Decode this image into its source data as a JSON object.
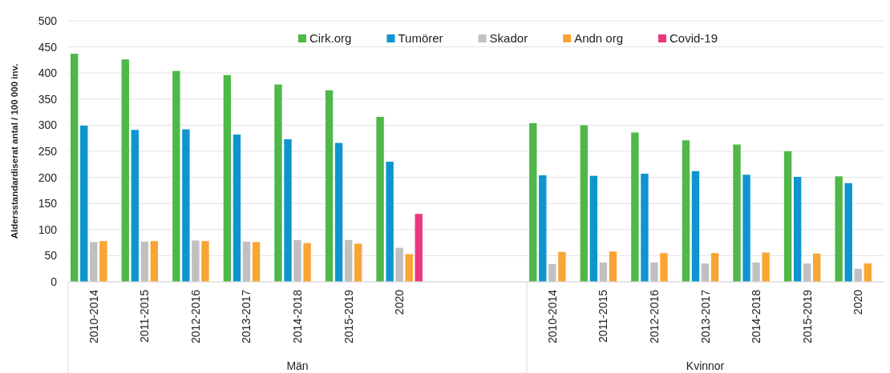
{
  "chart_data": {
    "type": "bar",
    "ylabel": "Aldersstandardiserat antal / 100 000 inv.",
    "categories": [
      "2010-2014",
      "2011-2015",
      "2012-2016",
      "2013-2017",
      "2014-2018",
      "2015-2019",
      "2020",
      null,
      null,
      "2010-2014",
      "2011-2015",
      "2012-2016",
      "2013-2017",
      "2014-2018",
      "2015-2019",
      "2020"
    ],
    "series": [
      {
        "name": "Cirk.org",
        "color": "#4fb848",
        "values": [
          437,
          426,
          404,
          396,
          378,
          367,
          316,
          null,
          null,
          304,
          300,
          286,
          271,
          263,
          250,
          202
        ]
      },
      {
        "name": "Tumörer",
        "color": "#0e95d0",
        "values": [
          299,
          291,
          292,
          282,
          273,
          266,
          230,
          null,
          null,
          204,
          203,
          207,
          212,
          205,
          201,
          189
        ]
      },
      {
        "name": "Skador",
        "color": "#c0c0c0",
        "values": [
          76,
          77,
          79,
          77,
          80,
          80,
          65,
          null,
          null,
          34,
          37,
          37,
          35,
          37,
          35,
          25
        ]
      },
      {
        "name": "Andn org",
        "color": "#f9a533",
        "values": [
          78,
          78,
          78,
          76,
          74,
          73,
          53,
          null,
          null,
          57,
          58,
          55,
          55,
          56,
          54,
          35
        ]
      },
      {
        "name": "Covid-19",
        "color": "#e8387f",
        "values": [
          null,
          null,
          null,
          null,
          null,
          null,
          130,
          null,
          null,
          null,
          null,
          null,
          null,
          null,
          null,
          null
        ]
      }
    ],
    "annotations": [
      "Män",
      "Kvinnor"
    ],
    "ylim": [
      0,
      500
    ],
    "yticks": [
      0,
      50,
      100,
      150,
      200,
      250,
      300,
      350,
      400,
      450,
      500
    ],
    "grid": "y",
    "legend": "top"
  }
}
